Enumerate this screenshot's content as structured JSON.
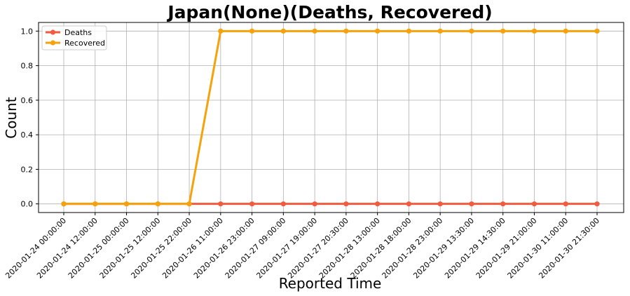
{
  "chart_data": {
    "type": "line",
    "title": "Japan(None)(Deaths, Recovered)",
    "xlabel": "Reported Time",
    "ylabel": "Count",
    "categories": [
      "2020-01-24 00:00:00",
      "2020-01-24 12:00:00",
      "2020-01-25 00:00:00",
      "2020-01-25 12:00:00",
      "2020-01-25 22:00:00",
      "2020-01-26 11:00:00",
      "2020-01-26 23:00:00",
      "2020-01-27 09:00:00",
      "2020-01-27 19:00:00",
      "2020-01-27 20:30:00",
      "2020-01-28 13:00:00",
      "2020-01-28 18:00:00",
      "2020-01-28 23:00:00",
      "2020-01-29 13:30:00",
      "2020-01-29 14:30:00",
      "2020-01-29 21:00:00",
      "2020-01-30 11:00:00",
      "2020-01-30 21:30:00"
    ],
    "series": [
      {
        "name": "Deaths",
        "color": "#f15b3e",
        "values": [
          0,
          0,
          0,
          0,
          0,
          0,
          0,
          0,
          0,
          0,
          0,
          0,
          0,
          0,
          0,
          0,
          0,
          0
        ]
      },
      {
        "name": "Recovered",
        "color": "#f5a20b",
        "values": [
          0,
          0,
          0,
          0,
          0,
          1,
          1,
          1,
          1,
          1,
          1,
          1,
          1,
          1,
          1,
          1,
          1,
          1
        ]
      }
    ],
    "yticks": [
      "0.0",
      "0.2",
      "0.4",
      "0.6",
      "0.8",
      "1.0"
    ],
    "ylim": [
      -0.05,
      1.05
    ],
    "grid": true,
    "legend": "top-left"
  }
}
